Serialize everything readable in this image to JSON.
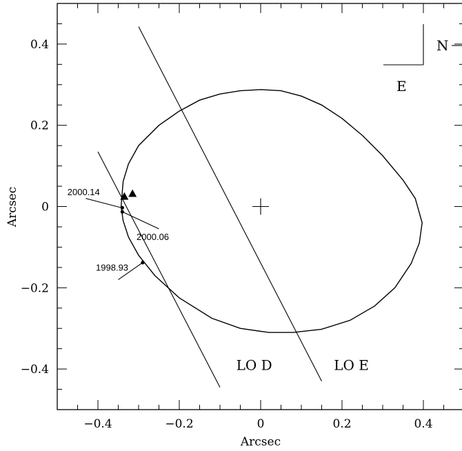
{
  "chart_data": {
    "type": "scatter",
    "xlabel": "Arcsec",
    "ylabel": "Arcsec",
    "xlim": [
      -0.5,
      0.5
    ],
    "ylim": [
      -0.5,
      0.5
    ],
    "x_ticks": [
      -0.4,
      -0.2,
      0,
      0.2,
      0.4
    ],
    "x_tick_labels": [
      "−0.4",
      "−0.2",
      "0",
      "0.2",
      "0.4"
    ],
    "y_ticks": [
      0.4,
      0.2,
      0,
      -0.2,
      -0.4
    ],
    "y_tick_labels": [
      "0.4",
      "0.2",
      "0",
      "−0.2",
      "−0.4"
    ],
    "minor_step": 0.05,
    "grid": false,
    "orbit_ellipse": {
      "description": "projected orbit",
      "points": [
        [
          -0.343,
          0.0
        ],
        [
          -0.338,
          0.062
        ],
        [
          -0.325,
          0.105
        ],
        [
          -0.3,
          0.15
        ],
        [
          -0.25,
          0.2
        ],
        [
          -0.2,
          0.235
        ],
        [
          -0.15,
          0.262
        ],
        [
          -0.1,
          0.277
        ],
        [
          -0.05,
          0.285
        ],
        [
          0.0,
          0.288
        ],
        [
          0.05,
          0.285
        ],
        [
          0.1,
          0.272
        ],
        [
          0.15,
          0.25
        ],
        [
          0.2,
          0.217
        ],
        [
          0.25,
          0.175
        ],
        [
          0.3,
          0.125
        ],
        [
          0.35,
          0.065
        ],
        [
          0.38,
          0.02
        ],
        [
          0.397,
          -0.04
        ],
        [
          0.39,
          -0.09
        ],
        [
          0.37,
          -0.14
        ],
        [
          0.33,
          -0.2
        ],
        [
          0.28,
          -0.245
        ],
        [
          0.22,
          -0.28
        ],
        [
          0.15,
          -0.302
        ],
        [
          0.08,
          -0.31
        ],
        [
          0.02,
          -0.31
        ],
        [
          -0.05,
          -0.3
        ],
        [
          -0.12,
          -0.275
        ],
        [
          -0.2,
          -0.225
        ],
        [
          -0.26,
          -0.17
        ],
        [
          -0.3,
          -0.12
        ],
        [
          -0.325,
          -0.075
        ],
        [
          -0.338,
          -0.035
        ],
        [
          -0.343,
          0.0
        ]
      ]
    },
    "center_marker": [
      0.0,
      0.0
    ],
    "lines": [
      {
        "label": "LO D",
        "from": [
          -0.4,
          0.135
        ],
        "to": [
          -0.1,
          -0.445
        ]
      },
      {
        "label": "LO E",
        "from": [
          -0.3,
          0.443
        ],
        "to": [
          0.15,
          -0.43
        ]
      }
    ],
    "line_labels": [
      {
        "text": "LO D",
        "pos": [
          -0.06,
          -0.402
        ]
      },
      {
        "text": "LO E",
        "pos": [
          0.18,
          -0.402
        ]
      }
    ],
    "observed_points": [
      [
        -0.34,
        -0.003
      ],
      [
        -0.34,
        -0.013
      ],
      [
        -0.29,
        -0.138
      ]
    ],
    "triangles": [
      [
        -0.335,
        0.025
      ],
      [
        -0.315,
        0.032
      ]
    ],
    "date_labels": [
      {
        "text": "2000.14",
        "pos": [
          -0.475,
          0.028
        ],
        "leader": [
          [
            -0.43,
            0.02
          ],
          [
            -0.342,
            -0.003
          ]
        ]
      },
      {
        "text": "2000.06",
        "pos": [
          -0.305,
          -0.082
        ],
        "leader": [
          [
            -0.34,
            -0.013
          ],
          [
            -0.25,
            -0.055
          ]
        ]
      },
      {
        "text": "1998.93",
        "pos": [
          -0.405,
          -0.158
        ],
        "leader": [
          [
            -0.35,
            -0.18
          ],
          [
            -0.29,
            -0.138
          ]
        ]
      }
    ],
    "compass": {
      "north": "N",
      "east": "E"
    }
  }
}
